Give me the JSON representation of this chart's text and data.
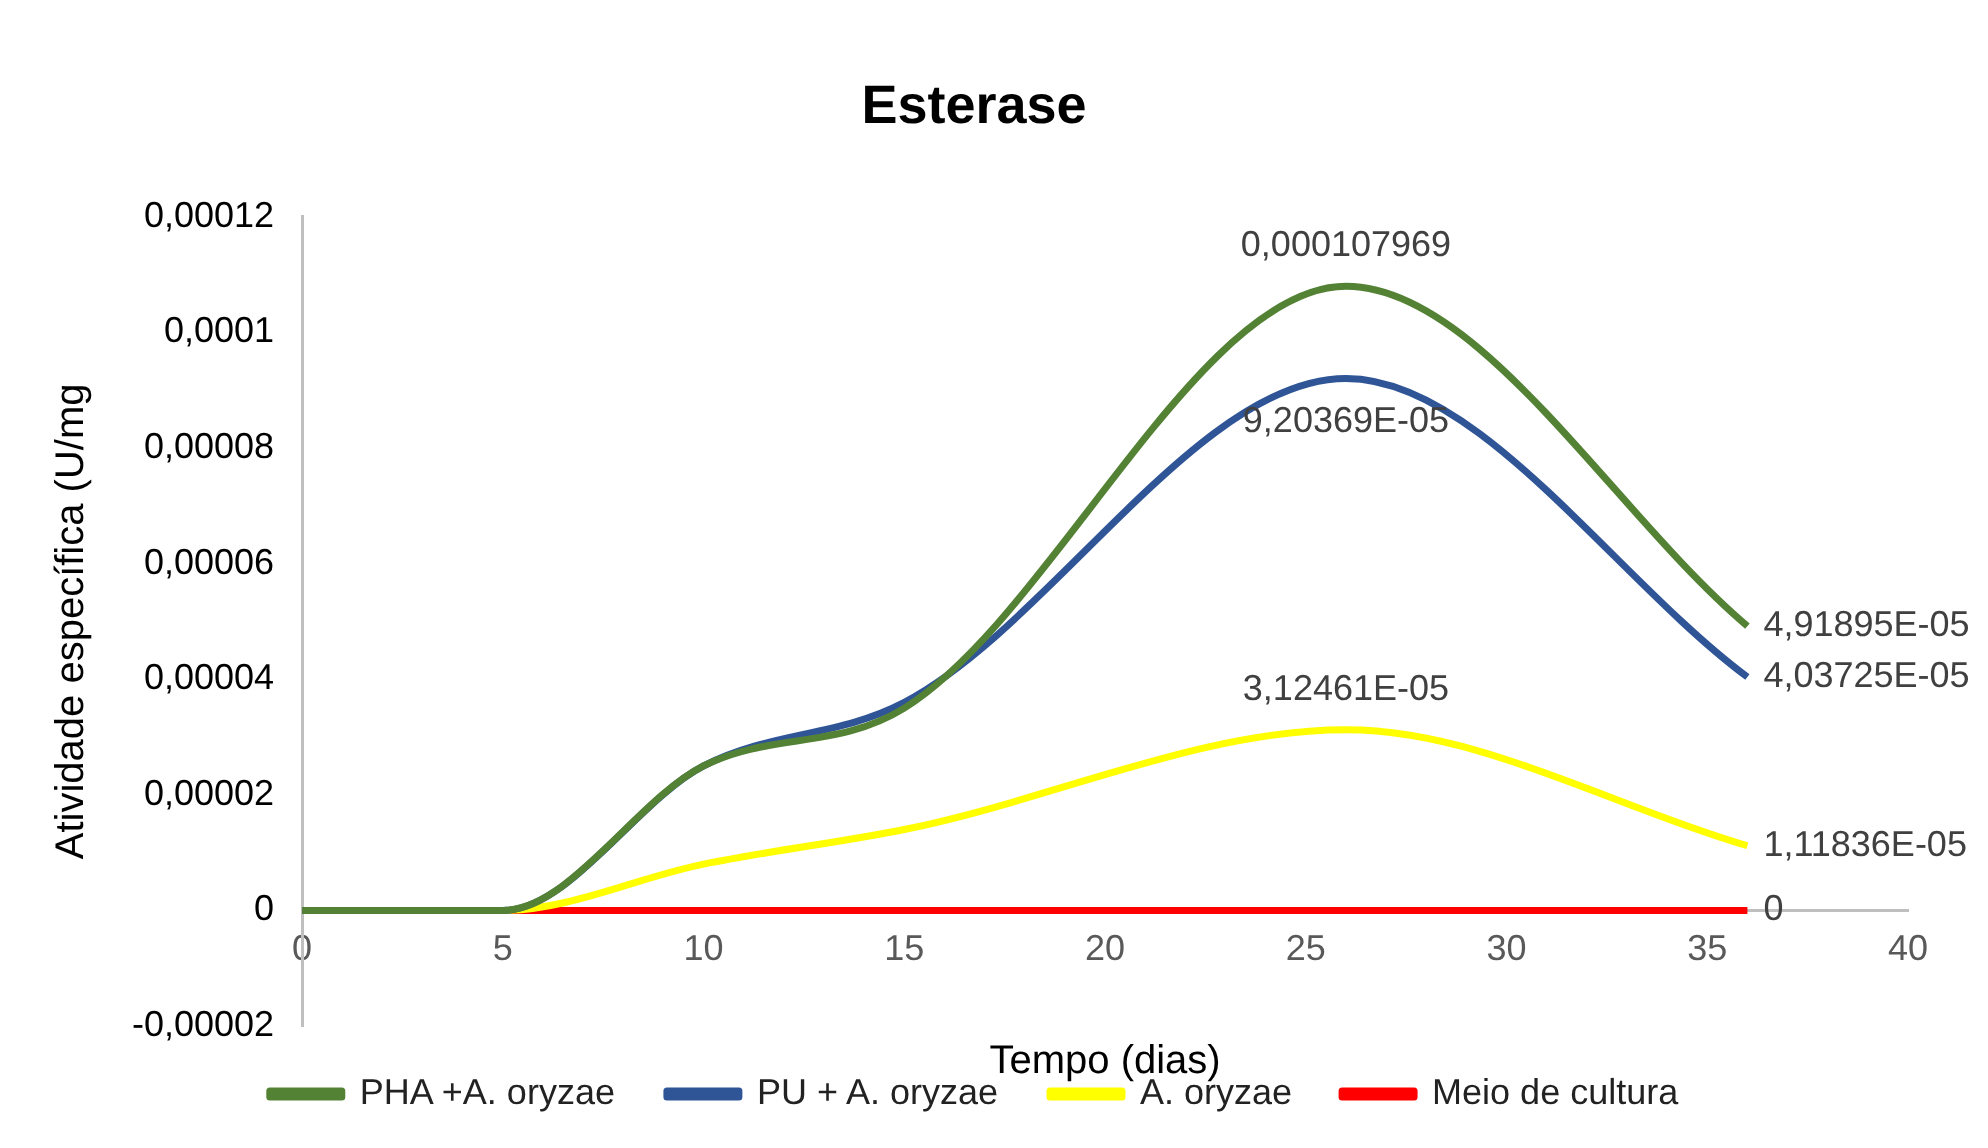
{
  "chart_data": {
    "type": "line",
    "title": "Esterase",
    "xlabel": "Tempo (dias)",
    "ylabel": "Atividade específica (U/mg",
    "x": [
      0,
      5,
      10,
      15,
      26,
      36
    ],
    "series": [
      {
        "name": "PHA +A. oryzae",
        "color": "#548235",
        "values": [
          0,
          0,
          2.5e-05,
          3.5e-05,
          0.000107969,
          4.91895e-05
        ],
        "value_labels": [
          null,
          null,
          null,
          null,
          "0,000107969",
          "4,91895E-05"
        ]
      },
      {
        "name": "PU + A. oryzae",
        "color": "#2f5597",
        "values": [
          0,
          0,
          2.5e-05,
          3.6e-05,
          9.20369e-05,
          4.03725e-05
        ],
        "value_labels": [
          null,
          null,
          null,
          null,
          "9,20369E-05",
          "4,03725E-05"
        ]
      },
      {
        "name": "A. oryzae",
        "color": "#ffff00",
        "values": [
          0,
          0,
          8e-06,
          1.4e-05,
          3.12461e-05,
          1.11836e-05
        ],
        "value_labels": [
          null,
          null,
          null,
          null,
          "3,12461E-05",
          "1,11836E-05"
        ]
      },
      {
        "name": "Meio de cultura",
        "color": "#ff0000",
        "values": [
          0,
          0,
          0,
          0,
          0,
          0
        ],
        "value_labels": [
          null,
          null,
          null,
          null,
          null,
          "0"
        ]
      }
    ],
    "xlim": [
      0,
      40
    ],
    "xticks": [
      0,
      5,
      10,
      15,
      20,
      25,
      30,
      35,
      40
    ],
    "ylim": [
      -2e-05,
      0.00012
    ],
    "yticks": [
      {
        "value": -2e-05,
        "label": "-0,00002"
      },
      {
        "value": 0,
        "label": "0"
      },
      {
        "value": 2e-05,
        "label": "0,00002"
      },
      {
        "value": 4e-05,
        "label": "0,00004"
      },
      {
        "value": 6e-05,
        "label": "0,00006"
      },
      {
        "value": 8e-05,
        "label": "0,00008"
      },
      {
        "value": 0.0001,
        "label": "0,0001"
      },
      {
        "value": 0.00012,
        "label": "0,00012"
      }
    ],
    "grid": false,
    "legend": "bottom",
    "marker": "none",
    "line_style": "solid"
  }
}
